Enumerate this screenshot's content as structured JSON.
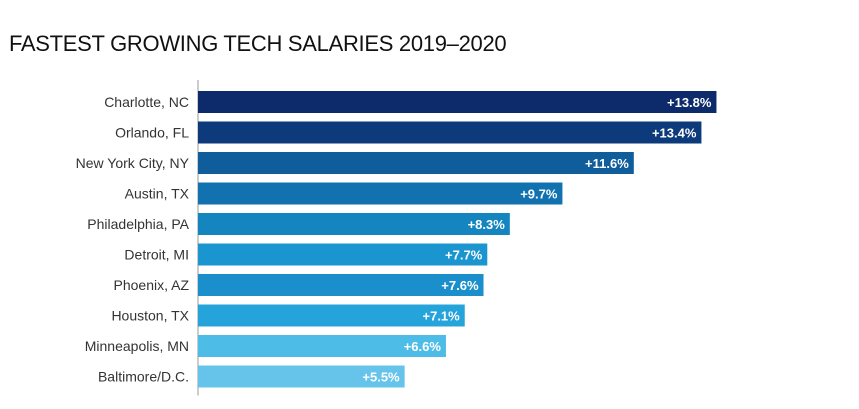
{
  "chart_data": {
    "type": "bar",
    "orientation": "horizontal",
    "title": "FASTEST GROWING TECH SALARIES 2019–2020",
    "xlabel": "",
    "ylabel": "",
    "grid": false,
    "legend": "none",
    "xlim": [
      0,
      14.4
    ],
    "categories": [
      "Charlotte, NC",
      "Orlando, FL",
      "New York City, NY",
      "Austin, TX",
      "Philadelphia, PA",
      "Detroit, MI",
      "Phoenix, AZ",
      "Houston, TX",
      "Minneapolis, MN",
      "Baltimore/D.C."
    ],
    "values": [
      13.8,
      13.4,
      11.6,
      9.7,
      8.3,
      7.7,
      7.6,
      7.1,
      6.6,
      5.5
    ],
    "data_labels": [
      "+13.8%",
      "+13.4%",
      "+11.6%",
      "+9.7%",
      "+8.3%",
      "+7.7%",
      "+7.6%",
      "+7.1%",
      "+6.6%",
      "+5.5%"
    ],
    "colors": [
      "#0d2a6b",
      "#0d3a7a",
      "#105d9c",
      "#1272b0",
      "#1585bf",
      "#1a95cf",
      "#1b8fcb",
      "#24a4da",
      "#4dbde8",
      "#66c4eb"
    ],
    "axis_color": "#999999"
  }
}
